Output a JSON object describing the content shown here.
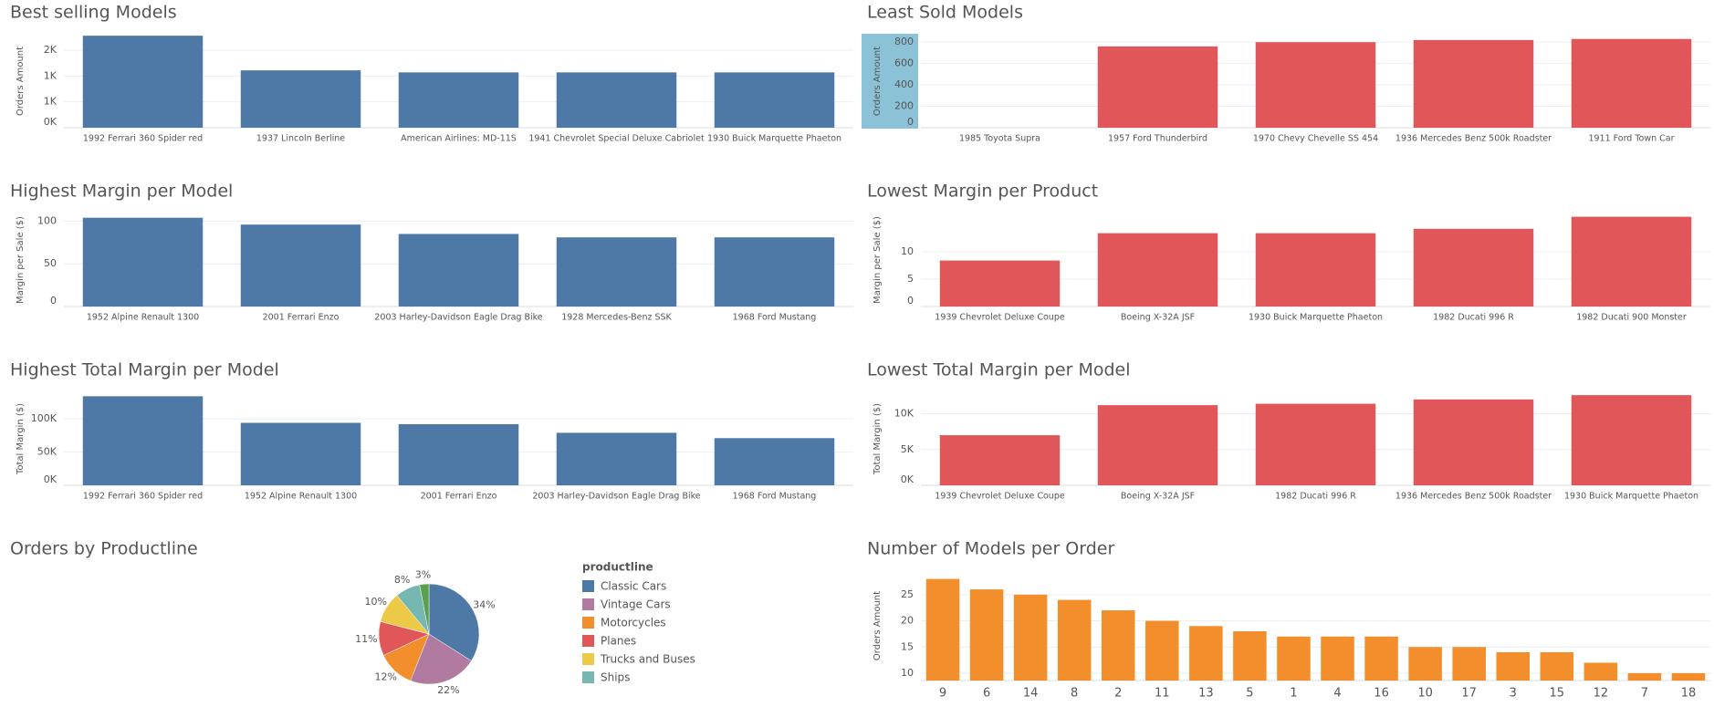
{
  "chart_data": [
    {
      "type": "bar",
      "title": "Best selling Models",
      "y_label": "Orders Amount",
      "categories": [
        "1992 Ferrari 360 Spider red",
        "1937 Lincoln Berline",
        "American Airlines: MD-11S",
        "1941 Chevrolet Special Deluxe Cabriolet",
        "1930 Buick Marquette Phaeton"
      ],
      "values": [
        1780,
        1110,
        1070,
        1070,
        1070
      ],
      "color": "#4e79a7",
      "ylim": [
        0,
        1800
      ],
      "yticks": [
        {
          "value": 0,
          "label": "0K"
        },
        {
          "value": 500,
          "label": "1K"
        },
        {
          "value": 1000,
          "label": "1K"
        },
        {
          "value": 1500,
          "label": "2K"
        }
      ]
    },
    {
      "type": "bar",
      "title": "Least Sold Models",
      "y_label": "Orders Amount",
      "categories": [
        "1985 Toyota Supra",
        "1957 Ford Thunderbird",
        "1970 Chevy Chevelle SS 454",
        "1936 Mercedes Benz 500k Roadster",
        "1911 Ford Town Car"
      ],
      "values": [
        null,
        760,
        800,
        820,
        830
      ],
      "color": "#e15759",
      "ylim": [
        0,
        870
      ],
      "yticks": [
        0,
        200,
        400,
        600,
        800
      ]
    },
    {
      "type": "bar",
      "title": "Highest Margin per Model",
      "y_label": "Margin per Sale ($)",
      "categories": [
        "1952 Alpine Renault 1300",
        "2001 Ferrari Enzo",
        "2003 Harley-Davidson Eagle Drag Bike",
        "1928 Mercedes-Benz SSK",
        "1968 Ford Mustang"
      ],
      "values": [
        104,
        96,
        85,
        81,
        81
      ],
      "color": "#4e79a7",
      "ylim": [
        0,
        109
      ],
      "yticks": [
        0,
        50,
        100
      ]
    },
    {
      "type": "bar",
      "title": "Lowest Margin per Product",
      "y_label": "Margin per Sale ($)",
      "categories": [
        "1939 Chevrolet Deluxe Coupe",
        "Boeing X-32A JSF",
        "1930 Buick Marquette Phaeton",
        "1982 Ducati 996 R",
        "1982 Ducati 900 Monster"
      ],
      "values": [
        8.4,
        13.4,
        13.4,
        14.2,
        16.4
      ],
      "color": "#e15759",
      "ylim": [
        0,
        17
      ],
      "yticks": [
        0,
        5,
        10
      ]
    },
    {
      "type": "bar",
      "title": "Highest Total Margin per Model",
      "y_label": "Total Margin ($)",
      "categories": [
        "1992 Ferrari 360 Spider red",
        "1952 Alpine Renault 1300",
        "2001 Ferrari Enzo",
        "2003 Harley-Davidson Eagle Drag Bike",
        "1968 Ford Mustang"
      ],
      "values": [
        134000,
        94000,
        92000,
        79000,
        71000
      ],
      "color": "#4e79a7",
      "ylim": [
        0,
        140000
      ],
      "yticks": [
        {
          "value": 0,
          "label": "0K"
        },
        {
          "value": 50000,
          "label": "50K"
        },
        {
          "value": 100000,
          "label": "100K"
        }
      ]
    },
    {
      "type": "bar",
      "title": "Lowest Total Margin per Model",
      "y_label": "Total Margin ($)",
      "categories": [
        "1939 Chevrolet Deluxe Coupe",
        "Boeing X-32A JSF",
        "1982 Ducati 996 R",
        "1936 Mercedes Benz 500k Roadster",
        "1930 Buick Marquette Phaeton"
      ],
      "values": [
        7000,
        11200,
        11400,
        12000,
        12600
      ],
      "color": "#e15759",
      "ylim": [
        0,
        13000
      ],
      "yticks": [
        {
          "value": 0,
          "label": "0K"
        },
        {
          "value": 5000,
          "label": "5K"
        },
        {
          "value": 10000,
          "label": "10K"
        }
      ]
    },
    {
      "type": "pie",
      "title": "Orders by Productline",
      "legend_title": "productline",
      "categories": [
        "Classic Cars",
        "Vintage Cars",
        "Motorcycles",
        "Planes",
        "Trucks and Buses",
        "Ships",
        null
      ],
      "values": [
        34,
        22,
        12,
        11,
        10,
        8,
        3
      ],
      "value_labels": [
        "34%",
        "22%",
        "12%",
        "11%",
        "10%",
        "8%",
        "3%"
      ],
      "colors": [
        "#4e79a7",
        "#b07aa1",
        "#f28e2b",
        "#e15759",
        "#edc948",
        "#76b7b2",
        "#59a14f"
      ]
    },
    {
      "type": "bar",
      "title": "Number of Models per Order",
      "y_label": "Orders Amount",
      "categories": [
        "9",
        "6",
        "14",
        "8",
        "2",
        "11",
        "13",
        "5",
        "1",
        "4",
        "16",
        "10",
        "17",
        "3",
        "15",
        "12",
        "7",
        "18"
      ],
      "values": [
        28,
        26,
        25,
        24,
        22,
        20,
        19,
        18,
        17,
        17,
        17,
        15,
        15,
        14,
        14,
        12,
        10,
        10
      ],
      "color": "#f28e2b",
      "ylim": [
        8.6,
        29.5
      ],
      "yticks": [
        10,
        15,
        20,
        25
      ]
    }
  ]
}
